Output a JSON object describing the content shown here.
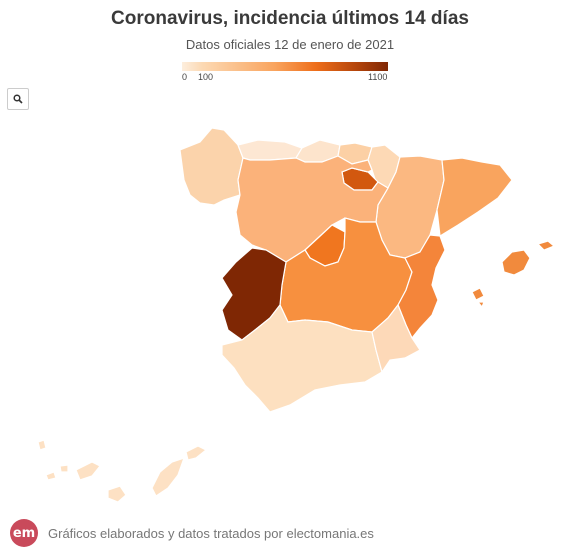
{
  "title": "Coronavirus, incidencia últimos 14 días",
  "subtitle": "Datos oficiales 12 de enero de 2021",
  "legend": {
    "min_label": "0",
    "mid_label": "100",
    "max_label": "1100",
    "color_low": "#fdeedd",
    "color_high": "#7f2704"
  },
  "search_icon": "search-icon",
  "footer": {
    "logo_text": "em",
    "text": "Gráficos elaborados y datos tratados por electomania.es",
    "logo_color": "#c94a5b"
  },
  "regions": [
    {
      "name": "Galicia",
      "fill": "#fbd3ab"
    },
    {
      "name": "Asturias",
      "fill": "#fde7d3"
    },
    {
      "name": "Cantabria",
      "fill": "#fde4cc"
    },
    {
      "name": "País Vasco",
      "fill": "#fcd0a5"
    },
    {
      "name": "Navarra",
      "fill": "#fdd9b5"
    },
    {
      "name": "La Rioja",
      "fill": "#d2580f"
    },
    {
      "name": "Aragón",
      "fill": "#fbb881"
    },
    {
      "name": "Cataluña",
      "fill": "#f9a45e"
    },
    {
      "name": "Castilla y León",
      "fill": "#fbb27a"
    },
    {
      "name": "Madrid",
      "fill": "#f0761f"
    },
    {
      "name": "Castilla-La Mancha",
      "fill": "#f7903f"
    },
    {
      "name": "Comunidad Valenciana",
      "fill": "#f4853a"
    },
    {
      "name": "Extremadura",
      "fill": "#7f2704"
    },
    {
      "name": "Andalucía",
      "fill": "#fde0c0"
    },
    {
      "name": "Murcia",
      "fill": "#fdd9b8"
    },
    {
      "name": "Islas Baleares",
      "fill": "#f18a3d"
    },
    {
      "name": "Canarias",
      "fill": "#fde1c4"
    }
  ]
}
